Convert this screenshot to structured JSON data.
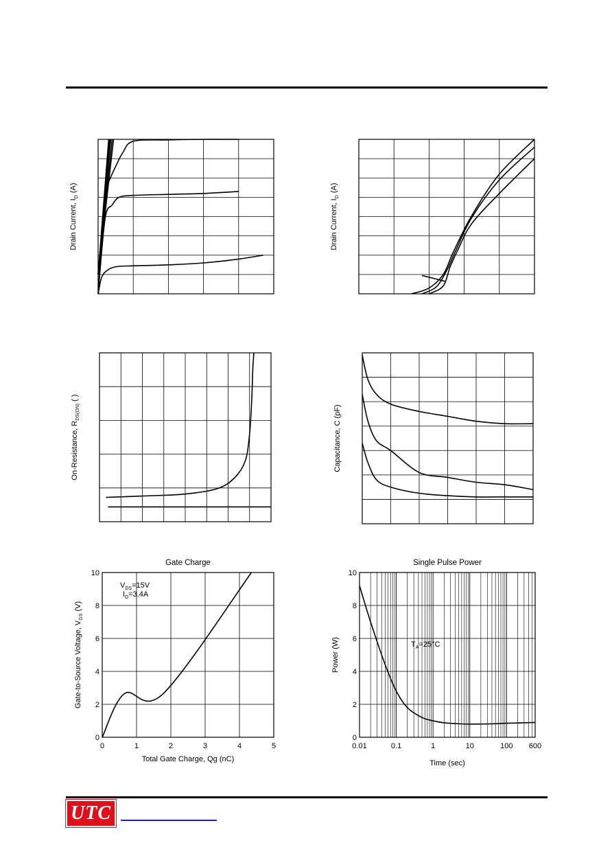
{
  "footer": {
    "logo_text": "UTC",
    "link_text": ""
  },
  "chart_data": [
    {
      "type": "line",
      "id": "drain-current-output",
      "title": "",
      "xlabel": "",
      "ylabel": "Drain Current, I D (A)",
      "ylabel_main": "Drain Current, I",
      "ylabel_sub": "D",
      "ylabel_unit": " (A)",
      "xlim": [
        0,
        5
      ],
      "ylim": [
        0,
        8
      ],
      "x_divisions": 5,
      "y_divisions": 8,
      "series": [
        {
          "x": [
            0,
            0.2,
            0.3,
            0.5,
            0.7,
            1,
            2,
            3,
            4
          ],
          "y": [
            0,
            5.3,
            5.8,
            6.6,
            7.3,
            7.9,
            7.97,
            8,
            8
          ]
        },
        {
          "x": [
            0,
            0.2,
            0.4,
            0.6,
            1,
            2,
            3,
            4
          ],
          "y": [
            0,
            3.9,
            4.6,
            5.0,
            5.1,
            5.15,
            5.2,
            5.3
          ]
        },
        {
          "x": [
            0,
            0.1,
            0.25,
            0.5,
            1,
            2,
            3,
            4,
            4.7
          ],
          "y": [
            0,
            0.85,
            1.2,
            1.4,
            1.45,
            1.5,
            1.6,
            1.8,
            2.0
          ]
        },
        {
          "x": [
            0,
            0.3
          ],
          "y": [
            1.0,
            8
          ]
        },
        {
          "x": [
            0,
            0.32
          ],
          "y": [
            1.0,
            8
          ]
        },
        {
          "x": [
            0,
            0.34
          ],
          "y": [
            1.0,
            8
          ]
        },
        {
          "x": [
            0,
            0.36
          ],
          "y": [
            1.0,
            8
          ]
        },
        {
          "x": [
            0,
            0.4
          ],
          "y": [
            1.0,
            8
          ]
        },
        {
          "x": [
            0,
            0.44
          ],
          "y": [
            1.0,
            8
          ]
        }
      ]
    },
    {
      "type": "line",
      "id": "drain-current-transfer",
      "title": "",
      "xlabel": "",
      "ylabel": "Drain Current, I D (A)",
      "ylabel_main": "Drain Current, I",
      "ylabel_sub": "D",
      "ylabel_unit": " (A)",
      "xlim": [
        0,
        5
      ],
      "ylim": [
        0,
        8
      ],
      "x_divisions": 5,
      "y_divisions": 8,
      "series": [
        {
          "x": [
            1.5,
            2.0,
            2.4,
            2.7,
            3.2,
            4.0,
            5.0
          ],
          "y": [
            0,
            0.3,
            1.0,
            2.2,
            4.0,
            6.2,
            8.0
          ]
        },
        {
          "x": [
            1.8,
            2.2,
            2.5,
            2.75,
            3.2,
            4.0,
            5.0
          ],
          "y": [
            0,
            0.35,
            1.2,
            2.2,
            3.9,
            5.9,
            7.6
          ]
        },
        {
          "x": [
            2.0,
            2.4,
            2.6,
            2.8,
            3.2,
            4.0,
            5.0
          ],
          "y": [
            0,
            0.4,
            1.4,
            2.2,
            3.6,
            5.2,
            7.0
          ]
        },
        {
          "x": [
            1.8,
            2.45
          ],
          "y": [
            0.95,
            0.65
          ]
        }
      ]
    },
    {
      "type": "line",
      "id": "on-resistance",
      "title": "",
      "xlabel": "",
      "ylabel_main": "On-Resistance, R",
      "ylabel_sub": "DS(ON)",
      "ylabel_unit": " ( )",
      "xlim": [
        0,
        8
      ],
      "ylim": [
        0,
        5
      ],
      "x_divisions": 8,
      "y_divisions": 5,
      "series": [
        {
          "x": [
            0.3,
            2,
            4,
            5.5,
            6.3,
            6.8,
            7.0,
            7.1,
            7.15,
            7.2
          ],
          "y": [
            0.72,
            0.76,
            0.82,
            0.98,
            1.3,
            1.8,
            2.6,
            3.6,
            4.5,
            5.0
          ]
        },
        {
          "x": [
            0.4,
            8
          ],
          "y": [
            0.44,
            0.44
          ]
        }
      ]
    },
    {
      "type": "line",
      "id": "capacitance",
      "title": "",
      "xlabel": "",
      "ylabel_main": "Capacitance, C (pF)",
      "ylabel_sub": "",
      "ylabel_unit": "",
      "xlim": [
        0,
        6
      ],
      "ylim": [
        0,
        7
      ],
      "x_divisions": 6,
      "y_divisions": 7,
      "series": [
        {
          "x": [
            0,
            0.2,
            0.5,
            1,
            2,
            3,
            4,
            5,
            6
          ],
          "y": [
            6.9,
            5.9,
            5.3,
            4.9,
            4.6,
            4.4,
            4.2,
            4.1,
            4.1
          ]
        },
        {
          "x": [
            0,
            0.2,
            0.5,
            1,
            2,
            3,
            4,
            5,
            6
          ],
          "y": [
            5.3,
            4.2,
            3.4,
            3.0,
            2.1,
            1.9,
            1.7,
            1.6,
            1.4
          ]
        },
        {
          "x": [
            0,
            0.2,
            0.5,
            1,
            2,
            3,
            4,
            5,
            6
          ],
          "y": [
            3.3,
            2.5,
            1.8,
            1.5,
            1.25,
            1.15,
            1.1,
            1.1,
            1.1
          ]
        }
      ]
    },
    {
      "type": "line",
      "id": "gate-charge",
      "title": "Gate Charge",
      "xlabel": "Total Gate Charge, Qg (nC)",
      "ylabel_main": "Gate-to-Source Voltage, V",
      "ylabel_sub": "GS",
      "ylabel_unit": " (V)",
      "xlim": [
        0,
        5
      ],
      "ylim": [
        0,
        10
      ],
      "xticks": [
        "0",
        "1",
        "2",
        "3",
        "4",
        "5"
      ],
      "yticks": [
        "0",
        "2",
        "4",
        "6",
        "8",
        "10"
      ],
      "annotation_lines": [
        {
          "main": "V",
          "sub": "DS",
          "rest": "=15V"
        },
        {
          "main": "I",
          "sub": "D",
          "rest": "=3.4A"
        }
      ],
      "series": [
        {
          "x": [
            0,
            0.65,
            1.78,
            4.35
          ],
          "y": [
            0,
            2.65,
            2.65,
            10
          ]
        }
      ]
    },
    {
      "type": "line",
      "id": "single-pulse-power",
      "title": "Single Pulse Power",
      "xlabel": "Time (sec)",
      "ylabel": "Power (W)",
      "x_scale": "log",
      "xlim": [
        0.01,
        600
      ],
      "ylim": [
        0,
        10
      ],
      "xticks": [
        "0.01",
        "0.1",
        "1",
        "10",
        "100",
        "600"
      ],
      "yticks": [
        "0",
        "2",
        "4",
        "6",
        "8",
        "10"
      ],
      "annotation": {
        "main": "T",
        "sub": "A",
        "rest": "=25°C"
      },
      "series": [
        {
          "x": [
            0.01,
            0.02,
            0.05,
            0.1,
            0.2,
            0.5,
            1,
            2,
            5,
            10,
            50,
            100,
            600
          ],
          "y": [
            9.2,
            7.0,
            4.4,
            2.8,
            1.8,
            1.2,
            1.0,
            0.88,
            0.82,
            0.8,
            0.82,
            0.85,
            0.9
          ]
        }
      ]
    }
  ]
}
